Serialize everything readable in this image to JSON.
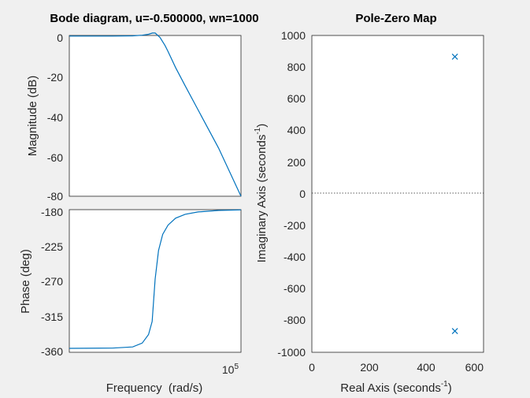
{
  "colors": {
    "background": "#f0f0f0",
    "axes": "#ffffff",
    "series": "#0072bd",
    "text": "#262626"
  },
  "chart_data": [
    {
      "type": "line",
      "title": "Bode diagram, u=-0.500000, wn=1000",
      "ylabel": "Magnitude (dB)",
      "xscale": "log",
      "xlim": [
        10,
        100000
      ],
      "ylim": [
        -80,
        0
      ],
      "yticks": [
        "0",
        "-20",
        "-40",
        "-60",
        "-80"
      ],
      "grid": false,
      "series": [
        {
          "x": [
            10,
            100,
            300,
            500,
            700,
            866,
            1000,
            1300,
            1700,
            2000,
            3000,
            5000,
            10000,
            30000,
            100000
          ],
          "y": [
            -0.3,
            -0.3,
            -0.2,
            0.1,
            0.6,
            1.2,
            1.2,
            -1.0,
            -5.0,
            -8.0,
            -16.0,
            -25.0,
            -37.0,
            -56.0,
            -80.0
          ]
        }
      ]
    },
    {
      "type": "line",
      "ylabel": "Phase (deg)",
      "xlabel": "Frequency  (rad/s)",
      "xscale": "log",
      "xlim": [
        10,
        100000
      ],
      "ylim": [
        -365,
        -180
      ],
      "yticks": [
        "-180",
        "-225",
        "-270",
        "-315",
        "-360"
      ],
      "xtick_base": "10",
      "xtick_exp": "5",
      "grid": false,
      "series": [
        {
          "x": [
            10,
            100,
            300,
            500,
            700,
            850,
            1000,
            1200,
            1500,
            2000,
            3000,
            5000,
            10000,
            30000,
            100000
          ],
          "y": [
            -359.9,
            -359.6,
            -358,
            -353,
            -342,
            -325,
            -270,
            -233,
            -212,
            -200,
            -191,
            -186,
            -183,
            -181,
            -180.3
          ]
        }
      ]
    },
    {
      "type": "scatter",
      "title": "Pole-Zero Map",
      "xlabel": "Real Axis (seconds",
      "xlabel_exp": "-1",
      "xlabel_close": ")",
      "ylabel": "Imaginary Axis (seconds",
      "ylabel_exp": "-1",
      "ylabel_close": ")",
      "xlim": [
        0,
        600
      ],
      "ylim": [
        -1000,
        1000
      ],
      "xticks": [
        "0",
        "200",
        "400",
        "600"
      ],
      "yticks": [
        "1000",
        "800",
        "600",
        "400",
        "200",
        "0",
        "-200",
        "-400",
        "-600",
        "-800",
        "-1000"
      ],
      "grid": false,
      "series": [
        {
          "x": [
            500,
            500
          ],
          "y": [
            866,
            -866
          ]
        }
      ]
    }
  ]
}
